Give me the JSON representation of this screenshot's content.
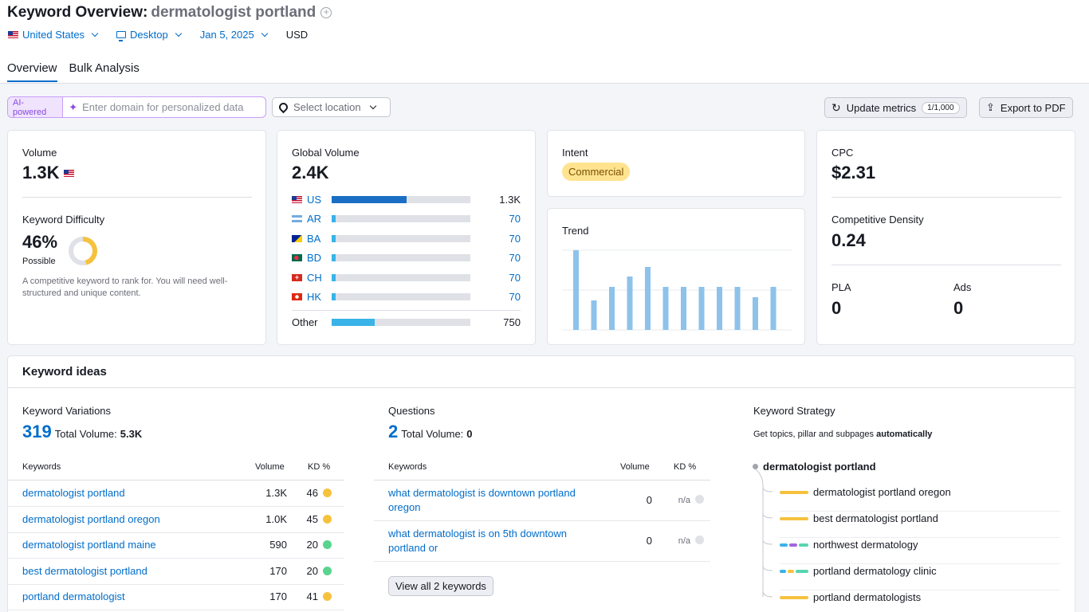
{
  "header": {
    "title": "Keyword Overview:",
    "keyword": "dermatologist portland",
    "filters": {
      "country": "United States",
      "device": "Desktop",
      "date": "Jan 5, 2025",
      "currency": "USD"
    },
    "tabs": [
      {
        "label": "Overview",
        "active": true
      },
      {
        "label": "Bulk Analysis",
        "active": false
      }
    ]
  },
  "toolbar": {
    "ai_badge": "AI-powered",
    "domain_placeholder": "Enter domain for personalized data",
    "location_placeholder": "Select location",
    "update_label": "Update metrics",
    "update_counter": "1/1,000",
    "export_label": "Export to PDF"
  },
  "volume_card": {
    "volume_label": "Volume",
    "volume_value": "1.3K",
    "kd_label": "Keyword Difficulty",
    "kd_value": "46%",
    "kd_percent": 46,
    "kd_status": "Possible",
    "kd_note": "A competitive keyword to rank for. You will need well-structured and unique content."
  },
  "global_volume": {
    "label": "Global Volume",
    "value": "2.4K",
    "rows": [
      {
        "code": "US",
        "value": "1.3K",
        "share": 0.54
      },
      {
        "code": "AR",
        "value": "70",
        "share": 0.03
      },
      {
        "code": "BA",
        "value": "70",
        "share": 0.03
      },
      {
        "code": "BD",
        "value": "70",
        "share": 0.03
      },
      {
        "code": "CH",
        "value": "70",
        "share": 0.03
      },
      {
        "code": "HK",
        "value": "70",
        "share": 0.03
      }
    ],
    "other_label": "Other",
    "other_value": "750",
    "other_share": 0.31
  },
  "intent": {
    "label": "Intent",
    "tag": "Commercial"
  },
  "trend": {
    "label": "Trend",
    "chart_data": {
      "type": "bar",
      "values": [
        100,
        37,
        54,
        67,
        79,
        54,
        54,
        54,
        54,
        54,
        41,
        54
      ]
    }
  },
  "cpc_card": {
    "cpc_label": "CPC",
    "cpc_value": "$2.31",
    "density_label": "Competitive Density",
    "density_value": "0.24",
    "pla_label": "PLA",
    "pla_value": "0",
    "ads_label": "Ads",
    "ads_value": "0"
  },
  "keyword_ideas": {
    "title": "Keyword ideas",
    "variations": {
      "label": "Keyword Variations",
      "count": "319",
      "total_label": "Total Volume:",
      "total_value": "5.3K",
      "col_keywords": "Keywords",
      "col_volume": "Volume",
      "col_kd": "KD %",
      "rows": [
        {
          "keyword": "dermatologist portland",
          "volume": "1.3K",
          "kd": "46",
          "color": "#f6c23e"
        },
        {
          "keyword": "dermatologist portland oregon",
          "volume": "1.0K",
          "kd": "45",
          "color": "#f6c23e"
        },
        {
          "keyword": "dermatologist portland maine",
          "volume": "590",
          "kd": "20",
          "color": "#59d48f"
        },
        {
          "keyword": "best dermatologist portland",
          "volume": "170",
          "kd": "20",
          "color": "#59d48f"
        },
        {
          "keyword": "portland dermatologist",
          "volume": "170",
          "kd": "41",
          "color": "#f6c23e"
        }
      ]
    },
    "questions": {
      "label": "Questions",
      "count": "2",
      "total_label": "Total Volume:",
      "total_value": "0",
      "col_keywords": "Keywords",
      "col_volume": "Volume",
      "col_kd": "KD %",
      "rows": [
        {
          "keyword_line1": "what dermatologist is downtown portland",
          "keyword_line2": "oregon",
          "volume": "0",
          "kd": "n/a"
        },
        {
          "keyword_line1": "what dermatologist is on 5th downtown",
          "keyword_line2": "portland or",
          "volume": "0",
          "kd": "n/a"
        }
      ],
      "view_all": "View all 2 keywords"
    },
    "strategy": {
      "label": "Keyword Strategy",
      "desc_prefix": "Get topics, pillar and subpages",
      "desc_bold": "automatically",
      "root": "dermatologist portland",
      "items": [
        "dermatologist portland oregon",
        "best dermatologist portland",
        "northwest dermatology",
        "portland dermatology clinic",
        "portland dermatologists"
      ]
    }
  },
  "colors": {
    "accent": "#006dca",
    "us_bar": "#1a6fc4",
    "country_bar": "#39b3e8",
    "trend_bar": "#8dc2ea",
    "kd_ring": "#f6c23e",
    "intent_bg": "#ffe38f"
  }
}
